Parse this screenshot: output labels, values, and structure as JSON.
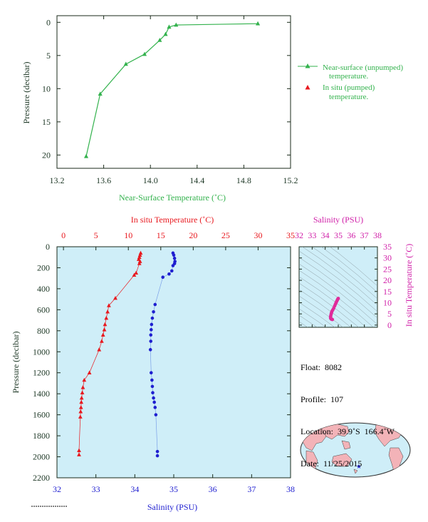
{
  "colors": {
    "green": "#33b24d",
    "red": "#e8191f",
    "blue": "#1f1fd0",
    "magenta": "#d01fa8",
    "axis_text": "#203a28",
    "panel_bg": "#cfeef8"
  },
  "chart_data": [
    {
      "type": "line",
      "xlabel": "Near-Surface Temperature (˚C)",
      "ylabel": "Pressure (decibar)",
      "xlim": [
        13.2,
        15.2
      ],
      "ylim": [
        22,
        -1
      ],
      "xticks": [
        13.2,
        13.6,
        14.0,
        14.4,
        14.8,
        15.2
      ],
      "xtick_labels": [
        "13.2",
        "13.6",
        "14.0",
        "14.4",
        "14.8",
        "15.2"
      ],
      "yticks": [
        0,
        5,
        10,
        15,
        20
      ],
      "ytick_labels": [
        "0",
        "5",
        "10",
        "15",
        "20"
      ],
      "legend_position": "right",
      "series": [
        {
          "name": "Near-surface (unpumped) temperature.",
          "marker": "triangle",
          "color": "#33b24d",
          "x": [
            13.45,
            13.57,
            13.79,
            13.95,
            14.08,
            14.13,
            14.16,
            14.22,
            14.92
          ],
          "y": [
            20.2,
            10.8,
            6.3,
            4.8,
            2.7,
            1.8,
            0.7,
            0.4,
            0.2
          ]
        },
        {
          "name": "In situ (pumped) temperature.",
          "marker": "triangle",
          "color": "#e8191f",
          "x": [],
          "y": []
        }
      ]
    },
    {
      "type": "scatter",
      "ylabel": "Pressure (decibar)",
      "ylim": [
        2200,
        0
      ],
      "yticks": [
        0,
        200,
        400,
        600,
        800,
        1000,
        1200,
        1400,
        1600,
        1800,
        2000,
        2200
      ],
      "ytick_labels": [
        "0",
        "200",
        "400",
        "600",
        "800",
        "1000",
        "1200",
        "1400",
        "1600",
        "1800",
        "2000",
        "2200"
      ],
      "top_axis": {
        "label": "In situ Temperature (˚C)",
        "lim": [
          -1,
          35
        ],
        "ticks": [
          0,
          5,
          10,
          15,
          20,
          25,
          30,
          35
        ],
        "tick_labels": [
          "0",
          "5",
          "10",
          "15",
          "20",
          "25",
          "30",
          "35"
        ]
      },
      "bottom_axis": {
        "label": "Salinity (PSU)",
        "lim": [
          32,
          38
        ],
        "ticks": [
          32,
          33,
          34,
          35,
          36,
          37,
          38
        ],
        "tick_labels": [
          "32",
          "33",
          "34",
          "35",
          "36",
          "37",
          "38"
        ]
      },
      "series": [
        {
          "axis": "top",
          "marker": "triangle",
          "color": "#e8191f",
          "x": [
            11.9,
            11.8,
            11.7,
            11.6,
            11.8,
            11.7,
            11.2,
            10.9,
            8.0,
            7.0,
            6.8,
            6.6,
            6.4,
            6.3,
            6.1,
            5.9,
            5.5,
            4.0,
            3.2,
            3.0,
            2.9,
            2.8,
            2.75,
            2.7,
            2.65,
            2.6,
            2.4,
            2.4
          ],
          "y": [
            60,
            80,
            100,
            120,
            140,
            160,
            250,
            270,
            490,
            560,
            620,
            680,
            740,
            790,
            840,
            900,
            980,
            1200,
            1270,
            1340,
            1390,
            1440,
            1480,
            1530,
            1570,
            1620,
            1940,
            1980
          ]
        },
        {
          "axis": "bottom",
          "marker": "dot",
          "color": "#1f1fd0",
          "x": [
            34.98,
            35.0,
            35.02,
            35.03,
            35.02,
            34.98,
            34.95,
            34.88,
            34.72,
            34.52,
            34.48,
            34.45,
            34.43,
            34.42,
            34.41,
            34.41,
            34.4,
            34.42,
            34.44,
            34.45,
            34.46,
            34.48,
            34.5,
            34.52,
            34.54,
            34.58,
            34.58
          ],
          "y": [
            60,
            80,
            110,
            140,
            160,
            180,
            230,
            260,
            290,
            550,
            620,
            680,
            740,
            790,
            840,
            900,
            980,
            1200,
            1270,
            1330,
            1390,
            1440,
            1480,
            1530,
            1600,
            1950,
            1990
          ]
        }
      ]
    },
    {
      "type": "scatter",
      "title": "Salinity (PSU)",
      "ylabel": "In situ Temperature (˚C)",
      "xlim": [
        32,
        38
      ],
      "ylim": [
        -1,
        35
      ],
      "xticks": [
        32,
        33,
        34,
        35,
        36,
        37,
        38
      ],
      "xtick_labels": [
        "32",
        "33",
        "34",
        "35",
        "36",
        "37",
        "38"
      ],
      "yticks": [
        0,
        5,
        10,
        15,
        20,
        25,
        30,
        35
      ],
      "ytick_labels": [
        "0",
        "5",
        "10",
        "15",
        "20",
        "25",
        "30",
        "35"
      ],
      "series": [
        {
          "marker": "dot",
          "color": "#e02a9a",
          "x": [
            35.0,
            34.97,
            34.93,
            34.88,
            34.83,
            34.78,
            34.72,
            34.65,
            34.58,
            34.52,
            34.48,
            34.45,
            34.42,
            34.41,
            34.42,
            34.45,
            34.48,
            34.55
          ],
          "y": [
            11.9,
            11.7,
            11.2,
            10.6,
            10.0,
            9.3,
            8.5,
            7.5,
            6.8,
            6.2,
            5.5,
            4.8,
            4.0,
            3.4,
            3.0,
            2.8,
            2.6,
            2.5
          ]
        }
      ]
    }
  ],
  "info": {
    "float": "Float:  8082",
    "profile": "Profile:  107",
    "location": "Location:  39.9˚S  166.4˚W",
    "date": "Date:  11/25/2015"
  }
}
